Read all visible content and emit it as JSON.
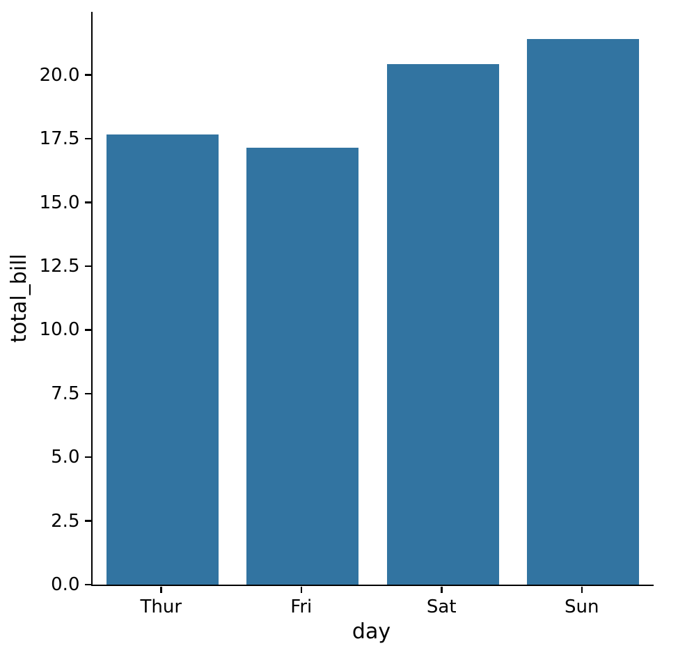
{
  "chart_data": {
    "type": "bar",
    "title": "",
    "categories": [
      "Thur",
      "Fri",
      "Sat",
      "Sun"
    ],
    "values": [
      17.68,
      17.15,
      20.44,
      21.41
    ],
    "xlabel": "day",
    "ylabel": "total_bill",
    "ylim": [
      0,
      22.48
    ],
    "yticks": [
      0.0,
      2.5,
      5.0,
      7.5,
      10.0,
      12.5,
      15.0,
      17.5,
      20.0
    ],
    "ytick_labels": [
      "0.0",
      "2.5",
      "5.0",
      "7.5",
      "10.0",
      "12.5",
      "15.0",
      "17.5",
      "20.0"
    ],
    "bar_width_fraction": 0.8,
    "grid": false,
    "legend": null,
    "colors": {
      "bar": "#3274a1",
      "axis": "#000000",
      "text": "#000000",
      "background": "#ffffff"
    }
  }
}
